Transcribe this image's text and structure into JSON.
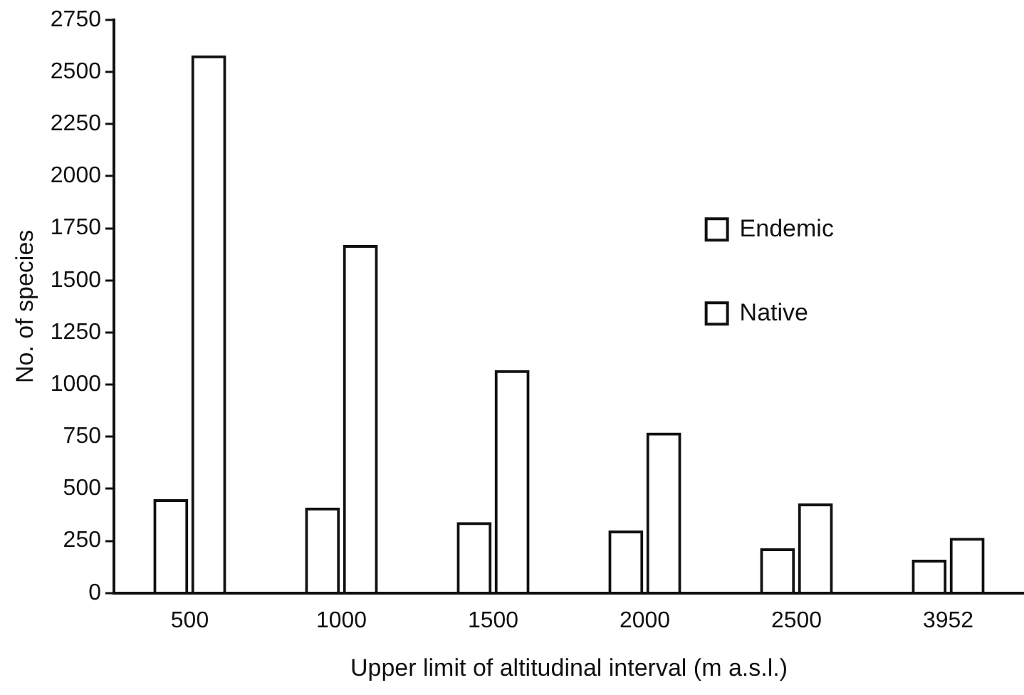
{
  "chart_data": {
    "type": "bar",
    "xlabel": "Upper limit of altitudinal interval (m a.s.l.)",
    "ylabel": "No. of species",
    "categories": [
      "500",
      "1000",
      "1500",
      "2000",
      "2500",
      "3952"
    ],
    "series": [
      {
        "name": "Endemic",
        "color": "#111111",
        "values": [
          450,
          410,
          340,
          300,
          215,
          160
        ]
      },
      {
        "name": "Native",
        "color": "#111111",
        "values": [
          2580,
          1670,
          1070,
          770,
          430,
          265
        ]
      }
    ],
    "ylim": [
      0,
      2750
    ],
    "yticks": [
      0,
      250,
      500,
      750,
      1000,
      1250,
      1500,
      1750,
      2000,
      2250,
      2500,
      2750
    ],
    "grid": false,
    "legend": "top right"
  }
}
